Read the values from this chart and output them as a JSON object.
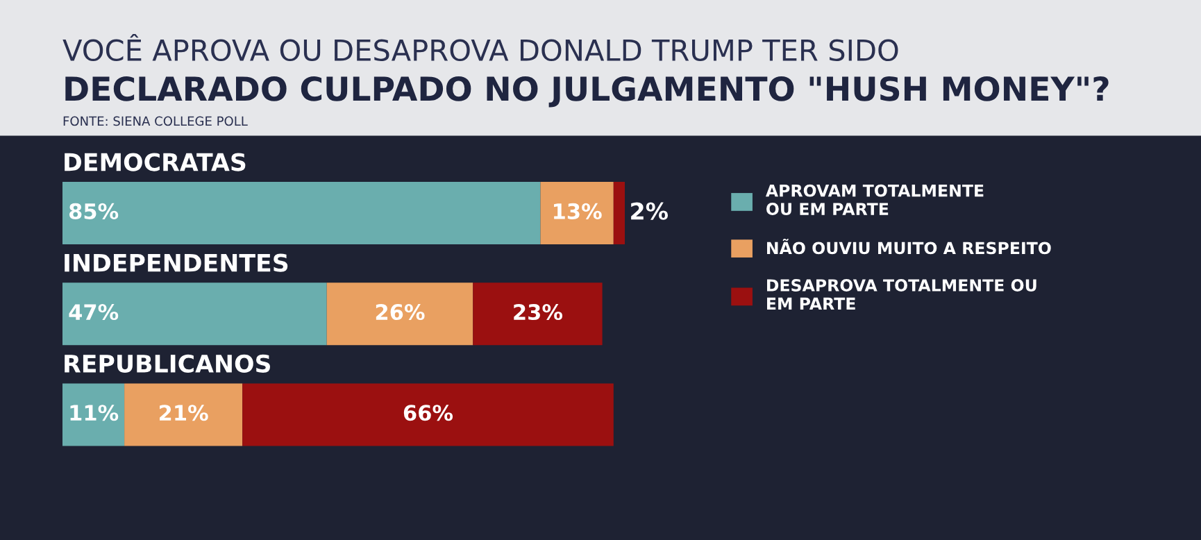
{
  "chart_data": {
    "type": "bar",
    "orientation": "horizontal",
    "stacked": true,
    "title": "VOCÊ APROVA OU DESAPROVA DONALD TRUMP TER SIDO",
    "subtitle": "DECLARADO CULPADO NO JULGAMENTO \"HUSH MONEY\"?",
    "annotations": [
      "FONTE: SIENA COLLEGE POLL"
    ],
    "categories": [
      "DEMOCRATAS",
      "INDEPENDENTES",
      "REPUBLICANOS"
    ],
    "xlim": [
      0,
      100
    ],
    "legend": "right",
    "series": [
      {
        "name": "APROVAM TOTALMENTE\nOU EM PARTE",
        "color": "#6aaeae",
        "values": [
          85,
          47,
          11
        ],
        "value_labels": [
          "85%",
          "47%",
          "11%"
        ]
      },
      {
        "name": "NÃO OUVIU MUITO A RESPEITO",
        "color": "#e9a061",
        "values": [
          13,
          26,
          21
        ],
        "value_labels": [
          "13%",
          "26%",
          "21%"
        ]
      },
      {
        "name": "DESAPROVA TOTALMENTE OU\nEM PARTE",
        "color": "#9b1010",
        "values": [
          2,
          23,
          66
        ],
        "value_labels": [
          "2%",
          "23%",
          "66%"
        ]
      }
    ]
  }
}
